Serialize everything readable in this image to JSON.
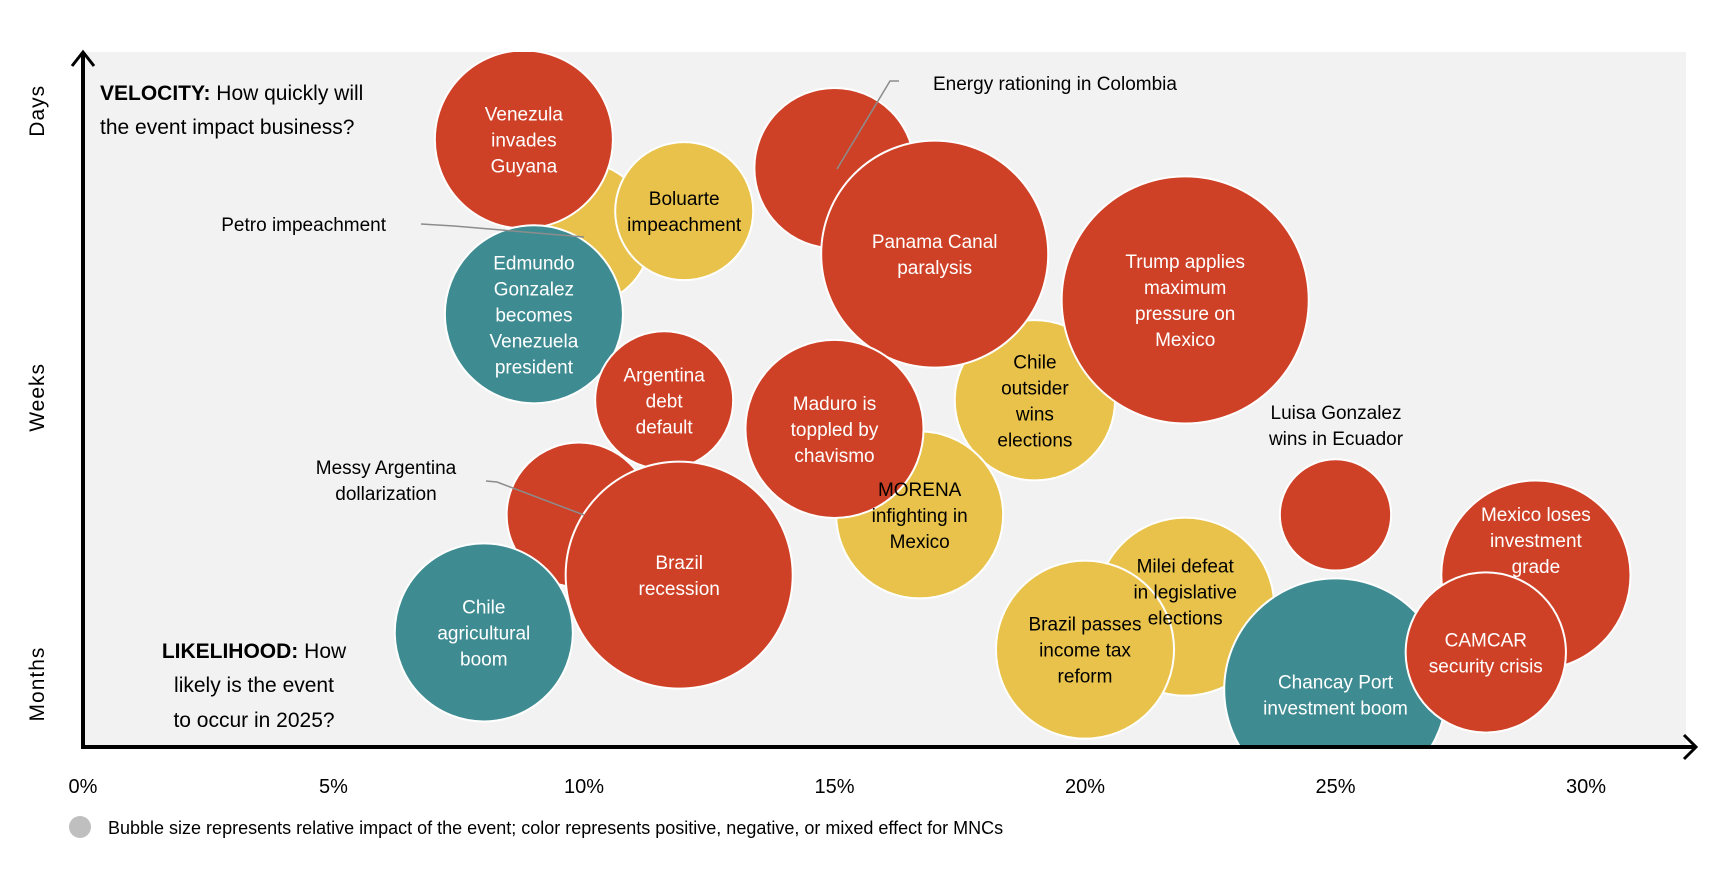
{
  "chart_data": {
    "type": "bubble",
    "title": "",
    "xlabel": "",
    "ylabel": "",
    "x_ticks": [
      "0%",
      "5%",
      "10%",
      "15%",
      "20%",
      "25%",
      "30%"
    ],
    "xlim": [
      0,
      32
    ],
    "y_categories": [
      "Months",
      "Weeks",
      "Days"
    ],
    "ylim": [
      -0.23,
      2.2
    ],
    "grid": false,
    "annotations": {
      "velocity_bold": "VELOCITY:",
      "velocity_rest_1": " How quickly will",
      "velocity_rest_2": "the event impact business?",
      "likelihood_bold": "LIKELIHOOD:",
      "likelihood_rest_1": " How",
      "likelihood_rest_2": "likely is the event",
      "likelihood_rest_3": "to occur in 2025?"
    },
    "legend": {
      "text": "Bubble size represents relative impact of the event; color represents positive, negative, or mixed effect for MNCs",
      "placement": "bottom-left",
      "marker_color": "#BFBFBF"
    },
    "colors": {
      "negative": "#CF4127",
      "mixed": "#E8C24A",
      "positive": "#3E8C92",
      "background": "#F2F2F2"
    },
    "series": [
      {
        "label": "Petro impeachment",
        "x": 9.9,
        "y": 1.57,
        "size": 6.5,
        "effect": "mixed",
        "label_outside": true
      },
      {
        "label": "Energy rationing in Colombia",
        "x": 15.0,
        "y": 1.8,
        "size": 7.2,
        "effect": "negative",
        "label_outside": true
      },
      {
        "label": "Messy Argentina dollarization",
        "x": 9.9,
        "y": 0.59,
        "size": 6.5,
        "effect": "negative",
        "label_outside": true
      },
      {
        "label": "Mexico loses investment grade",
        "x": 29.0,
        "y": 0.38,
        "size": 8.5,
        "effect": "negative"
      },
      {
        "label": "Milei defeat in legislative elections",
        "x": 22.0,
        "y": 0.27,
        "size": 8.0,
        "effect": "mixed"
      },
      {
        "label": "Chile outsider wins elections",
        "x": 19.0,
        "y": 0.99,
        "size": 7.2,
        "effect": "mixed"
      },
      {
        "label": "Chancay Port investment boom",
        "x": 25.0,
        "y": -0.02,
        "size": 10.0,
        "effect": "positive"
      },
      {
        "label": "MORENA infighting in Mexico",
        "x": 16.7,
        "y": 0.59,
        "size": 7.5,
        "effect": "mixed"
      },
      {
        "label": "Luisa Gonzalez wins in Ecuador",
        "x": 25.0,
        "y": 0.59,
        "size": 5.0,
        "effect": "negative",
        "label_outside": true
      },
      {
        "label": "Venezula invades Guyana",
        "x": 8.8,
        "y": 1.9,
        "size": 8.0,
        "effect": "negative"
      },
      {
        "label": "Edmundo Gonzalez becomes Venezuela president",
        "x": 9.0,
        "y": 1.29,
        "size": 8.0,
        "effect": "positive"
      },
      {
        "label": "Boluarte impeachment",
        "x": 12.0,
        "y": 1.65,
        "size": 6.2,
        "effect": "mixed"
      },
      {
        "label": "Panama Canal paralysis",
        "x": 17.0,
        "y": 1.5,
        "size": 10.2,
        "effect": "negative"
      },
      {
        "label": "Trump applies maximum pressure on Mexico",
        "x": 22.0,
        "y": 1.34,
        "size": 11.1,
        "effect": "negative"
      },
      {
        "label": "Argentina debt default",
        "x": 11.6,
        "y": 0.99,
        "size": 6.2,
        "effect": "negative"
      },
      {
        "label": "Maduro is toppled by chavismo",
        "x": 15.0,
        "y": 0.89,
        "size": 8.0,
        "effect": "negative"
      },
      {
        "label": "Brazil recession",
        "x": 11.9,
        "y": 0.38,
        "size": 10.2,
        "effect": "negative"
      },
      {
        "label": "Chile agricultural boom",
        "x": 8.0,
        "y": 0.18,
        "size": 8.0,
        "effect": "positive"
      },
      {
        "label": "Brazil passes income tax reform",
        "x": 20.0,
        "y": 0.12,
        "size": 8.0,
        "effect": "mixed"
      },
      {
        "label": "CAMCAR security crisis",
        "x": 28.0,
        "y": 0.11,
        "size": 7.2,
        "effect": "negative"
      }
    ]
  }
}
